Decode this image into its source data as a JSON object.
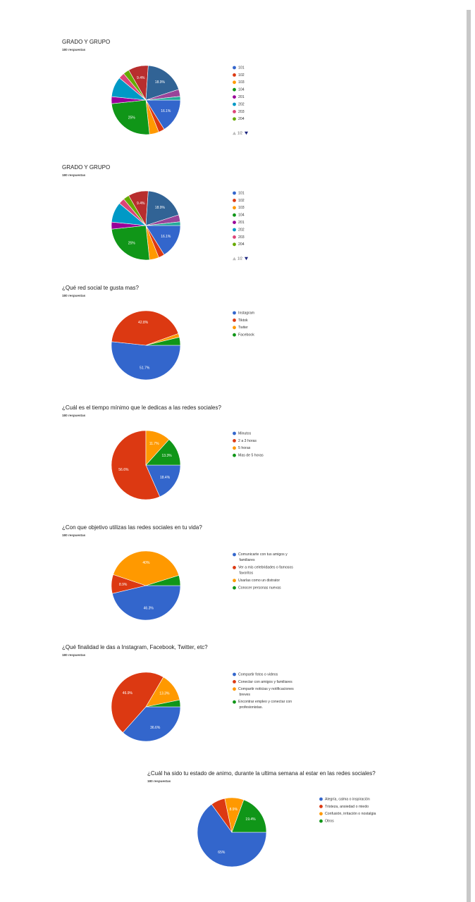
{
  "chart_data": [
    {
      "type": "pie",
      "title": "GRADO Y GRUPO",
      "subtitle": "180 respuestas",
      "categories": [
        "101",
        "102",
        "103",
        "104",
        "201",
        "202",
        "203",
        "204",
        null,
        null,
        null,
        null
      ],
      "values": [
        16.1,
        2.8,
        4.4,
        25,
        3.3,
        9.5,
        2.8,
        2.8,
        9.4,
        18.9,
        3.3,
        1.7
      ],
      "value_labels": [
        "16.1%",
        null,
        null,
        "25%",
        null,
        null,
        null,
        null,
        "9.4%",
        "18.9%",
        null,
        null
      ],
      "colors": [
        "#3366cc",
        "#dc3912",
        "#ff9900",
        "#109618",
        "#990099",
        "#0099c6",
        "#dd4477",
        "#66aa00",
        "#b82e2e",
        "#316395",
        "#994499",
        "#22aa99"
      ],
      "pager": "1/2"
    },
    {
      "type": "pie",
      "title": "GRADO Y GRUPO",
      "subtitle": "180 respuestas",
      "categories": [
        "101",
        "102",
        "103",
        "104",
        "201",
        "202",
        "203",
        "204",
        null,
        null,
        null,
        null
      ],
      "values": [
        16.1,
        2.8,
        4.4,
        25,
        3.3,
        9.5,
        2.8,
        2.8,
        9.4,
        18.9,
        3.3,
        1.7
      ],
      "value_labels": [
        "16.1%",
        null,
        null,
        "25%",
        null,
        null,
        null,
        null,
        "9.4%",
        "18.9%",
        null,
        null
      ],
      "colors": [
        "#3366cc",
        "#dc3912",
        "#ff9900",
        "#109618",
        "#990099",
        "#0099c6",
        "#dd4477",
        "#66aa00",
        "#b82e2e",
        "#316395",
        "#994499",
        "#22aa99"
      ],
      "pager": "1/2"
    },
    {
      "type": "pie",
      "title": "¿Qué red social te gusta mas?",
      "subtitle": "180 respuestas",
      "categories": [
        "Instagram",
        "Tiktok",
        "Twiter",
        "Facebook"
      ],
      "values": [
        51.7,
        42.8,
        1.7,
        3.8
      ],
      "value_labels": [
        "51.7%",
        "42.8%",
        null,
        null
      ],
      "colors": [
        "#3366cc",
        "#dc3912",
        "#ff9900",
        "#109618"
      ]
    },
    {
      "type": "pie",
      "title": "¿Cuál es el tiempo mínimo que le dedicas a las redes sociales?",
      "subtitle": "180 respuestas",
      "categories": [
        "Minutos",
        "2 a 3 horas",
        "5 horas",
        "Mas de 5 horas"
      ],
      "values": [
        18.4,
        56.6,
        11.7,
        13.3
      ],
      "value_labels": [
        "18.4%",
        "56.6%",
        "11.7%",
        "13.3%"
      ],
      "colors": [
        "#3366cc",
        "#dc3912",
        "#ff9900",
        "#109618"
      ]
    },
    {
      "type": "pie",
      "title": "¿Con que objetivo utilizas las redes sociales en tu vida?",
      "subtitle": "180 respuestas",
      "categories": [
        "Comunicarte con tus amigos y familiares",
        "Ver a mis celebridades o famosos favoritos",
        "Usarlas como un distrator",
        "Conocer personas nuevas"
      ],
      "values": [
        46.3,
        8.9,
        40,
        4.8
      ],
      "value_labels": [
        "46.3%",
        "8.9%",
        "40%",
        null
      ],
      "colors": [
        "#3366cc",
        "#dc3912",
        "#ff9900",
        "#109618"
      ]
    },
    {
      "type": "pie",
      "title": "¿Qué finalidad le das a Instagram, Facebook, Twitter, etc?",
      "subtitle": "180 respuestas",
      "categories": [
        "Compartir fotos o videos",
        "Conectar con amigos y familiares",
        "Compartir noticias y notificaciones breves",
        "Encontrar empleo y conectar con profesionistas."
      ],
      "values": [
        36.6,
        46.9,
        13.3,
        3.2
      ],
      "value_labels": [
        "36.6%",
        "46.9%",
        "13.3%",
        null
      ],
      "colors": [
        "#3366cc",
        "#dc3912",
        "#ff9900",
        "#109618"
      ]
    },
    {
      "type": "pie",
      "title": "¿Cuál ha sido tu estado de animo, durante la ultima semana al estar en las redes sociales?",
      "subtitle": "180 respuestas",
      "categories": [
        "Alegría, calma o inspiración",
        "Tristeza, ansiedad o miedo",
        "Confusión, irritación o nostalgia",
        "Otros"
      ],
      "values": [
        65,
        6.7,
        8.9,
        19.4
      ],
      "value_labels": [
        "65%",
        null,
        "8.9%",
        "19.4%"
      ],
      "colors": [
        "#3366cc",
        "#dc3912",
        "#ff9900",
        "#109618"
      ]
    }
  ]
}
